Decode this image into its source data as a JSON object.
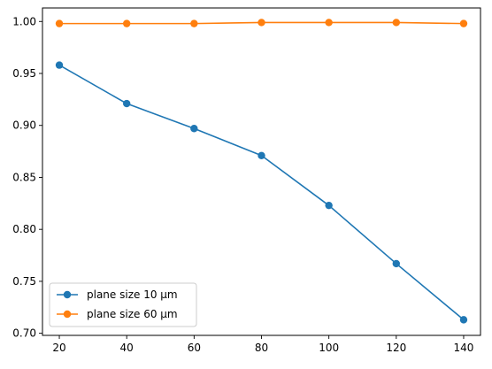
{
  "chart_data": {
    "type": "line",
    "title": "",
    "xlabel": "",
    "ylabel": "",
    "x": [
      20,
      40,
      60,
      80,
      100,
      120,
      140
    ],
    "xlim": [
      15,
      145
    ],
    "ylim": [
      0.698,
      1.013
    ],
    "xticks": [
      20,
      40,
      60,
      80,
      100,
      120,
      140
    ],
    "yticks": [
      0.7,
      0.75,
      0.8,
      0.85,
      0.9,
      0.95,
      1.0
    ],
    "xtick_labels": [
      "20",
      "40",
      "60",
      "80",
      "100",
      "120",
      "140"
    ],
    "ytick_labels": [
      "0.70",
      "0.75",
      "0.80",
      "0.85",
      "0.90",
      "0.95",
      "1.00"
    ],
    "grid": false,
    "legend_position": "lower-left",
    "series": [
      {
        "name": "plane size 10 µm",
        "color": "#1f77b4",
        "marker": "circle",
        "values": [
          0.958,
          0.921,
          0.897,
          0.871,
          0.823,
          0.767,
          0.713
        ]
      },
      {
        "name": "plane size 60 µm",
        "color": "#ff7f0e",
        "marker": "circle",
        "values": [
          0.998,
          0.998,
          0.998,
          0.999,
          0.999,
          0.999,
          0.998
        ]
      }
    ]
  }
}
